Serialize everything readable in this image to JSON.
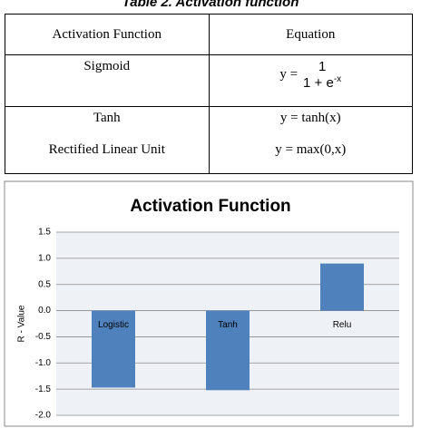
{
  "caption": "Table 2. Activation function",
  "table": {
    "header": [
      "Activation Function",
      "Equation"
    ],
    "rows": [
      {
        "name": "Sigmoid",
        "equation": {
          "lhs": "y =",
          "numerator": "1",
          "denominator": "1 + e",
          "exponent": "-x"
        }
      },
      {
        "name": "Tanh",
        "equation": "y = tanh(x)"
      },
      {
        "name": "Rectified Linear Unit",
        "equation": "y = max(0,x)"
      }
    ]
  },
  "chart_data": {
    "type": "bar",
    "title": "Activation Function",
    "y_label": "R - Value",
    "categories": [
      "Logistic",
      "Tanh",
      "Relu"
    ],
    "values": [
      -1.47,
      -1.52,
      0.9
    ],
    "color": "#4f81bd",
    "ylim": [
      -2,
      1.5
    ],
    "yticks": [
      {
        "value": -2,
        "label": "-2.0"
      },
      {
        "value": -1.5,
        "label": "-1.5"
      },
      {
        "value": -1,
        "label": "-1.0"
      },
      {
        "value": -0.5,
        "label": "-0.5"
      },
      {
        "value": 0,
        "label": "0.0"
      },
      {
        "value": 0.5,
        "label": "0.5"
      },
      {
        "value": 1,
        "label": "1.0"
      },
      {
        "value": 1.5,
        "label": "1.5"
      }
    ],
    "grid": true
  }
}
